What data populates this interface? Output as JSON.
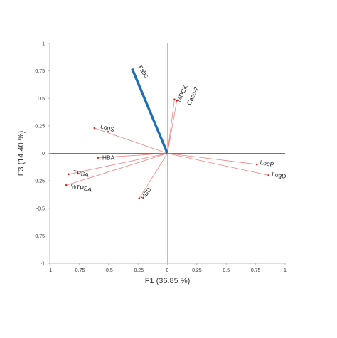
{
  "chart_data": {
    "type": "biplot",
    "xlabel": "F1 (36.85 %)",
    "ylabel": "F3 (14.40 %)",
    "xlim": [
      -1,
      1
    ],
    "ylim": [
      -1,
      1
    ],
    "x_ticks": [
      "-1",
      "-0.75",
      "-0.5",
      "-0.25",
      "0",
      "0.25",
      "0.5",
      "0.75",
      "1"
    ],
    "y_ticks": [
      "-1",
      "-0.75",
      "-0.5",
      "-0.25",
      "0",
      "0.25",
      "0.5",
      "0.75",
      "1"
    ],
    "grid": false,
    "series": [
      {
        "role": "variables",
        "color": "#f08080",
        "points": [
          {
            "label": "LogS",
            "x": -0.62,
            "y": 0.23
          },
          {
            "label": "HBA",
            "x": -0.59,
            "y": -0.04
          },
          {
            "label": "TPSA",
            "x": -0.84,
            "y": -0.19
          },
          {
            "label": "%TPSA",
            "x": -0.86,
            "y": -0.29
          },
          {
            "label": "HBD",
            "x": -0.24,
            "y": -0.41
          },
          {
            "label": "MDCK",
            "x": 0.06,
            "y": 0.49
          },
          {
            "label": "Caco-2",
            "x": 0.08,
            "y": 0.48
          },
          {
            "label": "LogP",
            "x": 0.76,
            "y": -0.1
          },
          {
            "label": "LogD",
            "x": 0.86,
            "y": -0.2
          }
        ]
      },
      {
        "role": "supplementary",
        "color": "#1f6fb8",
        "points": [
          {
            "label": "Fabs",
            "x": -0.3,
            "y": 0.77
          }
        ]
      }
    ]
  }
}
